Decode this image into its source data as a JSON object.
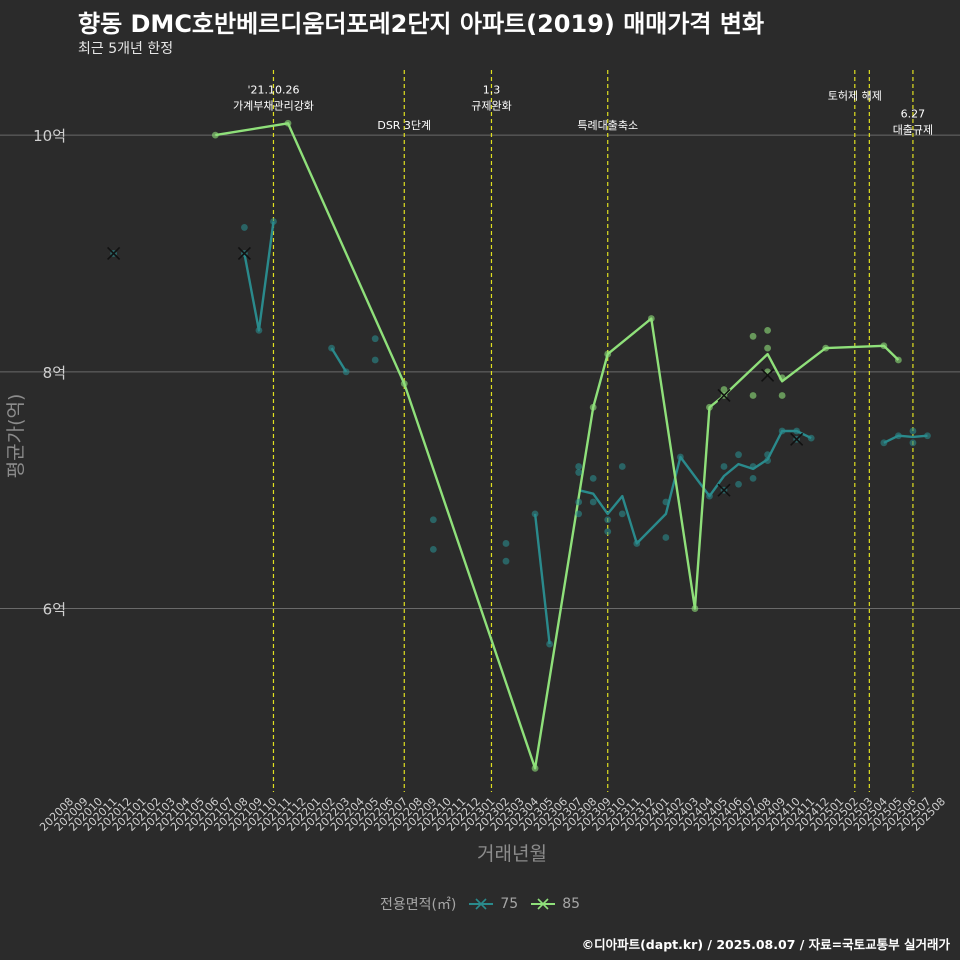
{
  "chart_data": {
    "type": "line",
    "title": "향동 DMC호반베르디움더포레2단지 아파트(2019) 매매가격 변화",
    "subtitle": "최근 5개년 한정",
    "xlabel": "거래년월",
    "ylabel": "평균가(억)",
    "caption": "©디아파트(dapt.kr) / 2025.08.07 / 자료=국토교통부 실거래가",
    "legend_title": "전용면적(㎡)",
    "x_ticks": [
      "202008",
      "202009",
      "202010",
      "202011",
      "202012",
      "202101",
      "202102",
      "202103",
      "202104",
      "202105",
      "202106",
      "202107",
      "202108",
      "202109",
      "202110",
      "202111",
      "202112",
      "202201",
      "202202",
      "202203",
      "202204",
      "202205",
      "202206",
      "202207",
      "202208",
      "202209",
      "202210",
      "202211",
      "202212",
      "202301",
      "202302",
      "202303",
      "202304",
      "202305",
      "202306",
      "202307",
      "202308",
      "202309",
      "202310",
      "202311",
      "202312",
      "202401",
      "202402",
      "202403",
      "202404",
      "202405",
      "202406",
      "202407",
      "202408",
      "202409",
      "202410",
      "202411",
      "202412",
      "202501",
      "202502",
      "202503",
      "202504",
      "202505",
      "202506",
      "202507",
      "202508"
    ],
    "y_ticks": [
      {
        "value": 6,
        "label": "6억"
      },
      {
        "value": 8,
        "label": "8억"
      },
      {
        "value": 10,
        "label": "10억"
      }
    ],
    "ylim": [
      4.45,
      10.55
    ],
    "grid": true,
    "legend_position": "bottom",
    "colors": {
      "s75": "#2a8a8c",
      "s85": "#8fe07a",
      "vline": "#e0e020",
      "grid": "#6a6a6a",
      "background": "#2b2b2b",
      "tick": "#cfcfcf",
      "axis_title": "#8c8c8c"
    },
    "series": [
      {
        "name": "75",
        "line_segments": [
          [
            [
              "202108",
              9.0
            ],
            [
              "202109",
              8.35
            ],
            [
              "202110",
              9.27
            ]
          ],
          [
            [
              "202202",
              8.2
            ],
            [
              "202203",
              8.0
            ]
          ],
          [
            [
              "202304",
              6.8
            ],
            [
              "202305",
              5.7
            ]
          ],
          [
            [
              "202307",
              7.0
            ],
            [
              "202308",
              6.97
            ],
            [
              "202309",
              6.8
            ],
            [
              "202310",
              6.95
            ],
            [
              "202311",
              6.55
            ],
            [
              "202401",
              6.8
            ],
            [
              "202402",
              7.28
            ],
            [
              "202404",
              6.95
            ],
            [
              "202405",
              7.12
            ],
            [
              "202406",
              7.22
            ],
            [
              "202407",
              7.18
            ],
            [
              "202408",
              7.26
            ],
            [
              "202409",
              7.5
            ],
            [
              "202410",
              7.5
            ],
            [
              "202411",
              7.44
            ]
          ],
          [
            [
              "202504",
              7.4
            ],
            [
              "202505",
              7.46
            ],
            [
              "202506",
              7.45
            ],
            [
              "202507",
              7.46
            ]
          ]
        ],
        "points": [
          [
            "202011",
            9.0
          ],
          [
            "202108",
            9.22
          ],
          [
            "202108",
            9.0
          ],
          [
            "202109",
            8.35
          ],
          [
            "202110",
            9.27
          ],
          [
            "202202",
            8.2
          ],
          [
            "202203",
            8.0
          ],
          [
            "202205",
            8.28
          ],
          [
            "202205",
            8.1
          ],
          [
            "202209",
            6.75
          ],
          [
            "202209",
            6.5
          ],
          [
            "202302",
            6.55
          ],
          [
            "202302",
            6.4
          ],
          [
            "202304",
            6.8
          ],
          [
            "202305",
            5.7
          ],
          [
            "202307",
            7.2
          ],
          [
            "202307",
            7.15
          ],
          [
            "202307",
            6.9
          ],
          [
            "202307",
            6.8
          ],
          [
            "202308",
            7.1
          ],
          [
            "202308",
            6.9
          ],
          [
            "202309",
            6.75
          ],
          [
            "202309",
            6.65
          ],
          [
            "202310",
            7.2
          ],
          [
            "202310",
            6.8
          ],
          [
            "202311",
            6.55
          ],
          [
            "202401",
            6.9
          ],
          [
            "202401",
            6.6
          ],
          [
            "202402",
            7.28
          ],
          [
            "202404",
            6.95
          ],
          [
            "202405",
            7.2
          ],
          [
            "202405",
            7.0
          ],
          [
            "202406",
            7.3
          ],
          [
            "202406",
            7.05
          ],
          [
            "202407",
            7.2
          ],
          [
            "202407",
            7.1
          ],
          [
            "202408",
            7.3
          ],
          [
            "202408",
            7.25
          ],
          [
            "202409",
            7.5
          ],
          [
            "202410",
            7.5
          ],
          [
            "202410",
            7.43
          ],
          [
            "202411",
            7.44
          ],
          [
            "202504",
            7.4
          ],
          [
            "202505",
            7.46
          ],
          [
            "202506",
            7.5
          ],
          [
            "202506",
            7.4
          ],
          [
            "202507",
            7.46
          ]
        ],
        "mean_markers": [
          [
            "202011",
            9.0
          ],
          [
            "202108",
            9.0
          ],
          [
            "202405",
            7.0
          ],
          [
            "202410",
            7.43
          ]
        ]
      },
      {
        "name": "85",
        "line_segments": [
          [
            [
              "202106",
              10.0
            ],
            [
              "202111",
              10.1
            ],
            [
              "202207",
              7.9
            ],
            [
              "202304",
              4.65
            ],
            [
              "202308",
              7.7
            ],
            [
              "202309",
              8.15
            ],
            [
              "202312",
              8.45
            ],
            [
              "202403",
              6.0
            ],
            [
              "202404",
              7.7
            ],
            [
              "202405",
              7.8
            ],
            [
              "202408",
              8.15
            ],
            [
              "202409",
              7.92
            ],
            [
              "202412",
              8.2
            ],
            [
              "202504",
              8.22
            ],
            [
              "202505",
              8.1
            ]
          ]
        ],
        "points": [
          [
            "202106",
            10.0
          ],
          [
            "202111",
            10.1
          ],
          [
            "202207",
            7.9
          ],
          [
            "202304",
            4.65
          ],
          [
            "202308",
            7.7
          ],
          [
            "202309",
            8.15
          ],
          [
            "202312",
            8.45
          ],
          [
            "202403",
            6.0
          ],
          [
            "202404",
            7.7
          ],
          [
            "202405",
            7.85
          ],
          [
            "202405",
            7.8
          ],
          [
            "202407",
            8.3
          ],
          [
            "202407",
            7.8
          ],
          [
            "202408",
            8.35
          ],
          [
            "202408",
            8.2
          ],
          [
            "202408",
            8.0
          ],
          [
            "202409",
            7.95
          ],
          [
            "202409",
            7.8
          ],
          [
            "202412",
            8.2
          ],
          [
            "202504",
            8.22
          ],
          [
            "202505",
            8.1
          ]
        ],
        "mean_markers": [
          [
            "202405",
            7.8
          ],
          [
            "202408",
            7.97
          ]
        ]
      }
    ],
    "events": [
      {
        "x": "202110",
        "lines": [
          "'21.10.26",
          "가계부채관리강화"
        ],
        "label_y": 10.35
      },
      {
        "x": "202207",
        "lines": [
          "DSR 3단계"
        ],
        "label_y": 10.05
      },
      {
        "x": "202301",
        "lines": [
          "1.3",
          "규제완화"
        ],
        "label_y": 10.35
      },
      {
        "x": "202309",
        "lines": [
          "특례대출축소"
        ],
        "label_y": 10.05
      },
      {
        "x": "202502",
        "lines": [
          "토허제 해제"
        ],
        "label_y": 10.3
      },
      {
        "x": "202503",
        "lines": [],
        "label_y": 10.3
      },
      {
        "x": "202506",
        "lines": [
          "6.27",
          "대출규제"
        ],
        "label_y": 10.15
      }
    ]
  }
}
